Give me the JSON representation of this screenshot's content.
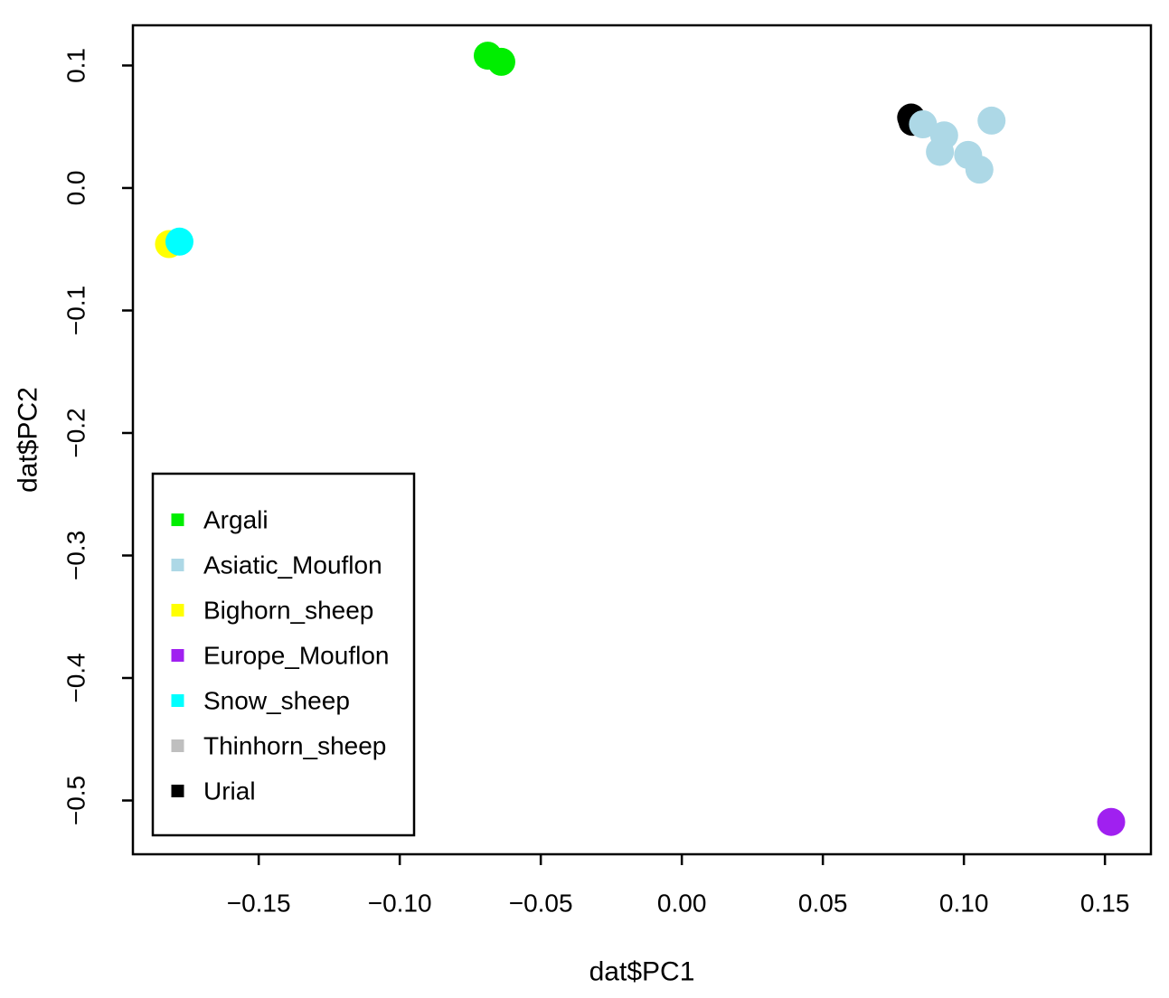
{
  "figure": {
    "background_color": "#FFFFFF",
    "axis_color": "#000000"
  },
  "chart_data": {
    "type": "scatter",
    "title": "",
    "xlabel": "dat$PC1",
    "ylabel": "dat$PC2",
    "xlim": [
      -0.1946,
      0.1663
    ],
    "ylim": [
      -0.5439,
      0.1328
    ],
    "x_ticks": [
      -0.15,
      -0.1,
      -0.05,
      0.0,
      0.05,
      0.1,
      0.15
    ],
    "x_tick_labels": [
      "−0.15",
      "−0.10",
      "−0.05",
      "0.00",
      "0.05",
      "0.10",
      "0.15"
    ],
    "y_ticks": [
      0.1,
      0.0,
      -0.1,
      -0.2,
      -0.3,
      -0.4,
      -0.5
    ],
    "y_tick_labels": [
      "0.1",
      "0.0",
      "−0.1",
      "−0.2",
      "−0.3",
      "−0.4",
      "−0.5"
    ],
    "grid": false,
    "marker": "filled-circle",
    "legend_position": "inside-bottom-left",
    "legend_entries": [
      "Argali",
      "Asiatic_Mouflon",
      "Bighorn_sheep",
      "Europe_Mouflon",
      "Snow_sheep",
      "Thinhorn_sheep",
      "Urial"
    ],
    "draw_order": [
      "Argali",
      "Bighorn_sheep",
      "Thinhorn_sheep",
      "Snow_sheep",
      "Urial",
      "Asiatic_Mouflon",
      "Europe_Mouflon"
    ],
    "series": [
      {
        "name": "Argali",
        "color": "#00EE00",
        "points": [
          [
            -0.0688,
            0.108
          ],
          [
            -0.064,
            0.103
          ]
        ]
      },
      {
        "name": "Asiatic_Mouflon",
        "color": "#ADD8E6",
        "points": [
          [
            0.0855,
            0.052
          ],
          [
            0.093,
            0.043
          ],
          [
            0.0915,
            0.0295
          ],
          [
            0.1015,
            0.027
          ],
          [
            0.1055,
            0.015
          ],
          [
            0.1098,
            0.055
          ]
        ]
      },
      {
        "name": "Bighorn_sheep",
        "color": "#FFFF00",
        "points": [
          [
            -0.1818,
            -0.0458
          ]
        ]
      },
      {
        "name": "Europe_Mouflon",
        "color": "#A020F0",
        "points": [
          [
            0.1522,
            -0.5175
          ]
        ]
      },
      {
        "name": "Snow_sheep",
        "color": "#00FFFF",
        "points": [
          [
            -0.1781,
            -0.0438
          ]
        ]
      },
      {
        "name": "Thinhorn_sheep",
        "color": "#BFBFBF",
        "points": []
      },
      {
        "name": "Urial",
        "color": "#000000",
        "points": [
          [
            0.0813,
            0.0575
          ],
          [
            0.0818,
            0.054
          ]
        ]
      }
    ]
  }
}
